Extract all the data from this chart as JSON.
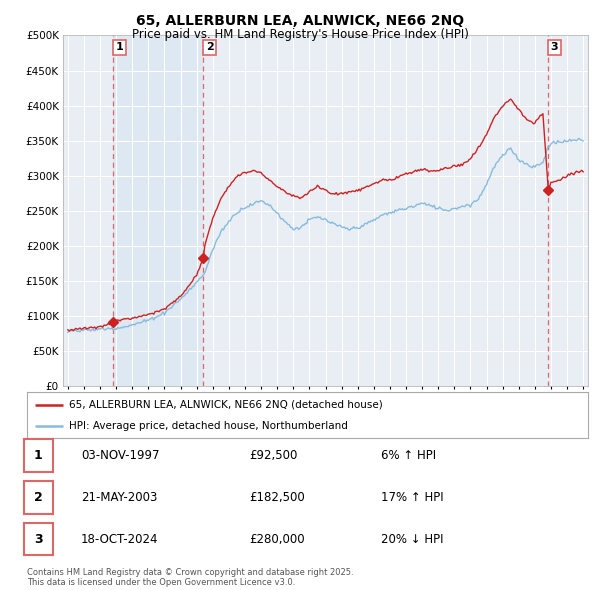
{
  "title": "65, ALLERBURN LEA, ALNWICK, NE66 2NQ",
  "subtitle": "Price paid vs. HM Land Registry's House Price Index (HPI)",
  "legend_line1": "65, ALLERBURN LEA, ALNWICK, NE66 2NQ (detached house)",
  "legend_line2": "HPI: Average price, detached house, Northumberland",
  "table_rows": [
    {
      "num": "1",
      "date": "03-NOV-1997",
      "price": "£92,500",
      "change": "6% ↑ HPI"
    },
    {
      "num": "2",
      "date": "21-MAY-2003",
      "price": "£182,500",
      "change": "17% ↑ HPI"
    },
    {
      "num": "3",
      "date": "18-OCT-2024",
      "price": "£280,000",
      "change": "20% ↓ HPI"
    }
  ],
  "footnote": "Contains HM Land Registry data © Crown copyright and database right 2025.\nThis data is licensed under the Open Government Licence v3.0.",
  "sale_years": [
    1997.833,
    2003.417,
    2024.833
  ],
  "sale_prices": [
    92500,
    182500,
    280000
  ],
  "ylim": [
    0,
    500000
  ],
  "yticks": [
    0,
    50000,
    100000,
    150000,
    200000,
    250000,
    300000,
    350000,
    400000,
    450000,
    500000
  ],
  "background_color": "#ffffff",
  "plot_bg_color": "#f0f0f0",
  "shaded_bg_color": "#ddeeff",
  "grid_color": "#ffffff",
  "red_color": "#cc2222",
  "blue_color": "#88bbdd",
  "vline_color": "#dd6666",
  "shade_color": "#cce0f0"
}
